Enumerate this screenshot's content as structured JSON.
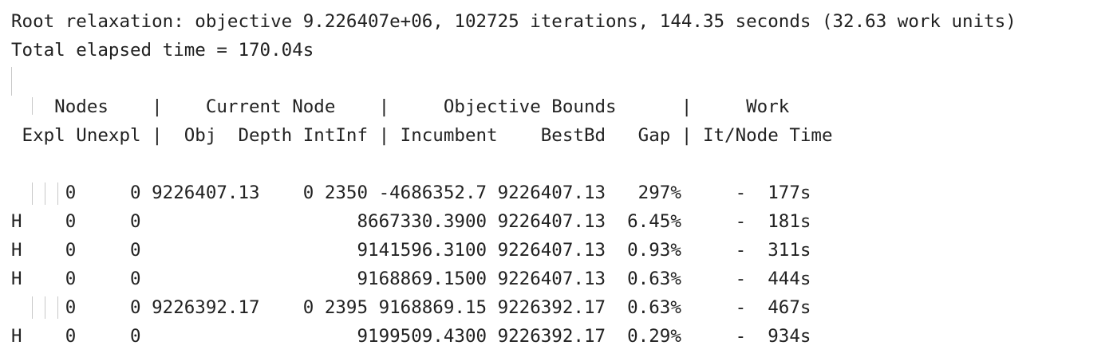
{
  "console": {
    "root_relaxation": "Root relaxation: objective 9.226407e+06, 102725 iterations, 144.35 seconds (32.63 work units)",
    "total_elapsed": "Total elapsed time = 170.04s",
    "header_groups": "    Nodes    |    Current Node    |     Objective Bounds      |     Work",
    "header_columns": " Expl Unexpl |  Obj  Depth IntInf | Incumbent    BestBd   Gap | It/Node Time",
    "rows": [
      "     0     0 9226407.13    0 2350 -4686352.7 9226407.13   297%     -  177s",
      "H    0     0                    8667330.3900 9226407.13  6.45%     -  181s",
      "H    0     0                    9141596.3100 9226407.13  0.93%     -  311s",
      "H    0     0                    9168869.1500 9226407.13  0.63%     -  444s",
      "     0     0 9226392.17    0 2395 9168869.15 9226392.17  0.63%     -  467s",
      "H    0     0                    9199509.4300 9226392.17  0.29%     -  934s"
    ]
  }
}
